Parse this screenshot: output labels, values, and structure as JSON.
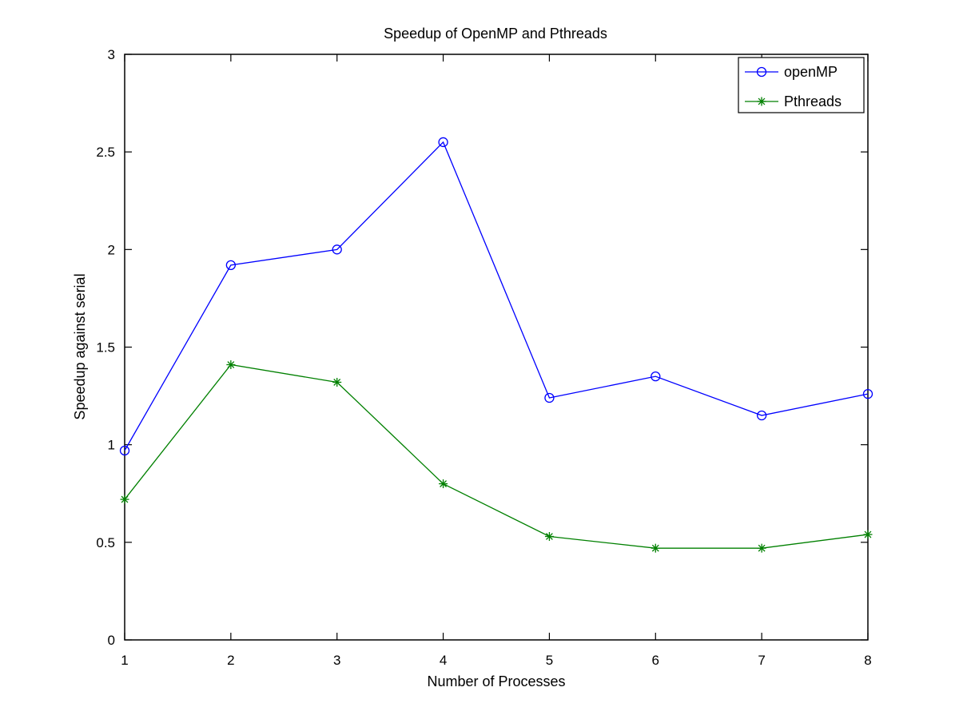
{
  "chart_data": {
    "type": "line",
    "title": "Speedup of OpenMP and Pthreads",
    "xlabel": "Number of Processes",
    "ylabel": "Speedup against serial",
    "xlim": [
      1,
      8
    ],
    "ylim": [
      0,
      3
    ],
    "x": [
      1,
      2,
      3,
      4,
      5,
      6,
      7,
      8
    ],
    "xticks": [
      "1",
      "2",
      "3",
      "4",
      "5",
      "6",
      "7",
      "8"
    ],
    "yticks": [
      "0",
      "0.5",
      "1",
      "1.5",
      "2",
      "2.5",
      "3"
    ],
    "yticks_values": [
      0,
      0.5,
      1,
      1.5,
      2,
      2.5,
      3
    ],
    "grid": false,
    "legend_position": "top-right",
    "series": [
      {
        "name": "openMP",
        "marker": "circle",
        "color": "#0000ff",
        "values": [
          0.97,
          1.92,
          2.0,
          2.55,
          1.24,
          1.35,
          1.15,
          1.26
        ]
      },
      {
        "name": "Pthreads",
        "marker": "asterisk",
        "color": "#008000",
        "values": [
          0.72,
          1.41,
          1.32,
          0.8,
          0.53,
          0.47,
          0.47,
          0.54
        ]
      }
    ]
  }
}
